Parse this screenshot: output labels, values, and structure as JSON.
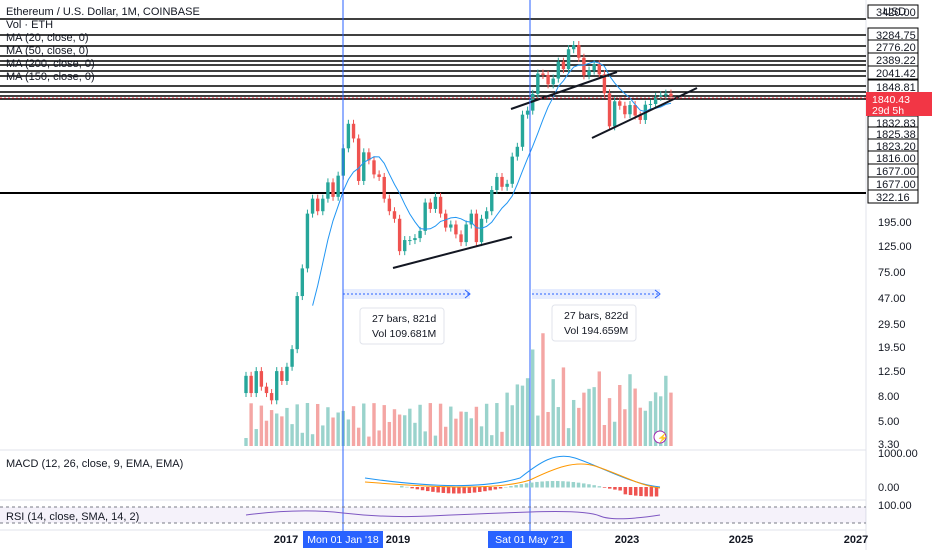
{
  "header": {
    "title": "Ethereum / U.S. Dollar, 1M, COINBASE",
    "vol": "Vol · ETH",
    "ma20": "MA (20, close, 0)",
    "ma50": "MA (50, close, 0)",
    "ma200": "MA (200, close, 0)",
    "ma150": "MA (150, close, 0)",
    "currency": "USD"
  },
  "chart_data": {
    "type": "candlestick",
    "title": "Ethereum / U.S. Dollar, 1M, COINBASE",
    "scale": "log",
    "x_ticks": [
      "2017",
      "2019",
      "2023",
      "2025",
      "2027"
    ],
    "y_ticks": [
      "195.00",
      "125.00",
      "75.00",
      "47.00",
      "29.50",
      "19.50",
      "12.50",
      "8.00",
      "5.00",
      "3.30"
    ],
    "horizontal_levels": [
      "3420.00",
      "3284.75",
      "2776.20",
      "2389.22",
      "2041.42",
      "1848.81",
      "1832.83",
      "1825.38",
      "1823.20",
      "1816.00",
      "1677.00",
      "1677.00",
      "322.16"
    ],
    "last_price": "1840.43",
    "countdown": "29d 5h",
    "vertical_markers": [
      "Mon 01 Jan '18",
      "Sat 01 May '21"
    ],
    "measure_boxes": [
      {
        "bars": "27 bars, 821d",
        "vol": "Vol 109.681M"
      },
      {
        "bars": "27 bars, 822d",
        "vol": "Vol 194.659M"
      }
    ],
    "candles": [
      {
        "o": 8,
        "c": 11,
        "up": 1
      },
      {
        "o": 11,
        "c": 8,
        "up": 0
      },
      {
        "o": 8,
        "c": 12,
        "up": 1
      },
      {
        "o": 12,
        "c": 9,
        "up": 0
      },
      {
        "o": 9,
        "c": 8,
        "up": 0
      },
      {
        "o": 8,
        "c": 7,
        "up": 0
      },
      {
        "o": 7,
        "c": 12,
        "up": 1
      },
      {
        "o": 12,
        "c": 10,
        "up": 0
      },
      {
        "o": 10,
        "c": 13,
        "up": 1
      },
      {
        "o": 13,
        "c": 18,
        "up": 1
      },
      {
        "o": 18,
        "c": 48,
        "up": 1
      },
      {
        "o": 48,
        "c": 80,
        "up": 1
      },
      {
        "o": 80,
        "c": 220,
        "up": 1
      },
      {
        "o": 220,
        "c": 290,
        "up": 1
      },
      {
        "o": 290,
        "c": 230,
        "up": 0
      },
      {
        "o": 230,
        "c": 290,
        "up": 1
      },
      {
        "o": 290,
        "c": 390,
        "up": 1
      },
      {
        "o": 390,
        "c": 300,
        "up": 0
      },
      {
        "o": 300,
        "c": 440,
        "up": 1
      },
      {
        "o": 440,
        "c": 720,
        "up": 1
      },
      {
        "o": 720,
        "c": 1120,
        "up": 1
      },
      {
        "o": 1120,
        "c": 860,
        "up": 0
      },
      {
        "o": 860,
        "c": 400,
        "up": 0
      },
      {
        "o": 400,
        "c": 670,
        "up": 1
      },
      {
        "o": 670,
        "c": 580,
        "up": 0
      },
      {
        "o": 580,
        "c": 450,
        "up": 0
      },
      {
        "o": 450,
        "c": 430,
        "up": 0
      },
      {
        "o": 430,
        "c": 290,
        "up": 0
      },
      {
        "o": 290,
        "c": 230,
        "up": 0
      },
      {
        "o": 230,
        "c": 200,
        "up": 0
      },
      {
        "o": 200,
        "c": 110,
        "up": 0
      },
      {
        "o": 110,
        "c": 135,
        "up": 1
      },
      {
        "o": 135,
        "c": 135,
        "up": 1
      },
      {
        "o": 135,
        "c": 140,
        "up": 1
      },
      {
        "o": 140,
        "c": 160,
        "up": 1
      },
      {
        "o": 160,
        "c": 270,
        "up": 1
      },
      {
        "o": 270,
        "c": 240,
        "up": 0
      },
      {
        "o": 240,
        "c": 300,
        "up": 1
      },
      {
        "o": 300,
        "c": 220,
        "up": 0
      },
      {
        "o": 220,
        "c": 170,
        "up": 0
      },
      {
        "o": 170,
        "c": 180,
        "up": 1
      },
      {
        "o": 180,
        "c": 150,
        "up": 0
      },
      {
        "o": 150,
        "c": 130,
        "up": 0
      },
      {
        "o": 130,
        "c": 180,
        "up": 1
      },
      {
        "o": 180,
        "c": 220,
        "up": 1
      },
      {
        "o": 220,
        "c": 130,
        "up": 0
      },
      {
        "o": 130,
        "c": 200,
        "up": 1
      },
      {
        "o": 200,
        "c": 230,
        "up": 1
      },
      {
        "o": 230,
        "c": 340,
        "up": 1
      },
      {
        "o": 340,
        "c": 430,
        "up": 1
      },
      {
        "o": 430,
        "c": 360,
        "up": 0
      },
      {
        "o": 360,
        "c": 380,
        "up": 1
      },
      {
        "o": 380,
        "c": 620,
        "up": 1
      },
      {
        "o": 620,
        "c": 740,
        "up": 1
      },
      {
        "o": 740,
        "c": 1320,
        "up": 1
      },
      {
        "o": 1320,
        "c": 1420,
        "up": 1
      },
      {
        "o": 1420,
        "c": 1920,
        "up": 1
      },
      {
        "o": 1920,
        "c": 2770,
        "up": 1
      },
      {
        "o": 2770,
        "c": 2700,
        "up": 0
      },
      {
        "o": 2700,
        "c": 2280,
        "up": 0
      },
      {
        "o": 2280,
        "c": 2530,
        "up": 1
      },
      {
        "o": 2530,
        "c": 3430,
        "up": 1
      },
      {
        "o": 3430,
        "c": 3000,
        "up": 0
      },
      {
        "o": 3000,
        "c": 4290,
        "up": 1
      },
      {
        "o": 4290,
        "c": 4630,
        "up": 1
      },
      {
        "o": 4630,
        "c": 3680,
        "up": 0
      },
      {
        "o": 3680,
        "c": 2680,
        "up": 0
      },
      {
        "o": 2680,
        "c": 2920,
        "up": 1
      },
      {
        "o": 2920,
        "c": 3280,
        "up": 1
      },
      {
        "o": 3280,
        "c": 2730,
        "up": 0
      },
      {
        "o": 2730,
        "c": 1940,
        "up": 0
      },
      {
        "o": 1940,
        "c": 1070,
        "up": 0
      },
      {
        "o": 1070,
        "c": 1680,
        "up": 1
      },
      {
        "o": 1680,
        "c": 1550,
        "up": 0
      },
      {
        "o": 1550,
        "c": 1330,
        "up": 0
      },
      {
        "o": 1330,
        "c": 1570,
        "up": 1
      },
      {
        "o": 1570,
        "c": 1300,
        "up": 0
      },
      {
        "o": 1300,
        "c": 1200,
        "up": 0
      },
      {
        "o": 1200,
        "c": 1580,
        "up": 1
      },
      {
        "o": 1580,
        "c": 1600,
        "up": 1
      },
      {
        "o": 1600,
        "c": 1820,
        "up": 1
      },
      {
        "o": 1820,
        "c": 1870,
        "up": 1
      },
      {
        "o": 1870,
        "c": 1930,
        "up": 1
      },
      {
        "o": 1930,
        "c": 1840,
        "up": 0
      }
    ]
  },
  "macd": {
    "label": "MACD (12, 26, close, 9, EMA, EMA)",
    "ticks": [
      "1000.00",
      "0.00"
    ]
  },
  "rsi": {
    "label": "RSI (14, close, SMA, 14, 2)",
    "ticks": [
      "100.00"
    ]
  },
  "colors": {
    "up": "#26a69a",
    "down": "#ef5350",
    "upVol": "#9ad3cc",
    "downVol": "#f4a6a4",
    "marker": "#2962ff",
    "ma": "#2196f3",
    "macdSignal": "#ff9800",
    "price": "#f23645"
  }
}
